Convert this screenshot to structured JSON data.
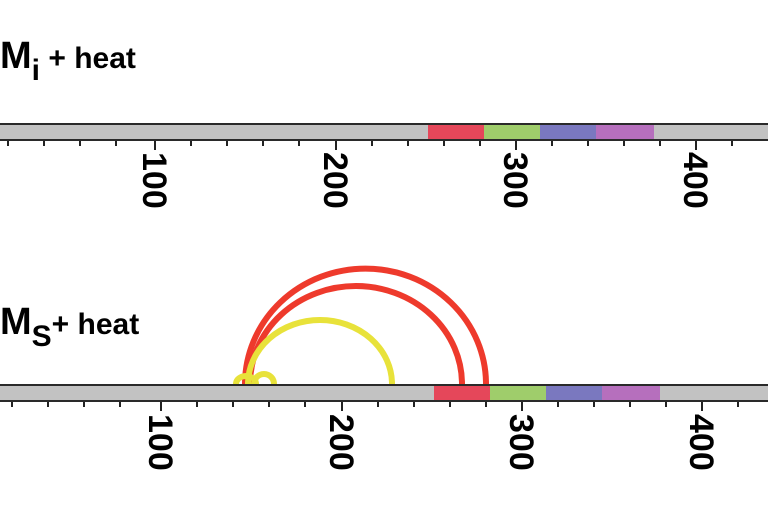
{
  "panels": [
    {
      "id": "mi",
      "title_main": "M",
      "title_sub": "i",
      "title_suffix": " + heat",
      "tick_labels": [
        "100",
        "200",
        "300",
        "400"
      ],
      "domains": [
        {
          "name": "red",
          "color": "#e5475a"
        },
        {
          "name": "green",
          "color": "#9fcd6b"
        },
        {
          "name": "blue",
          "color": "#7a78bf"
        },
        {
          "name": "purple",
          "color": "#b66fbd"
        }
      ],
      "crosslinks": []
    },
    {
      "id": "ms",
      "title_main": "M",
      "title_sub": "S",
      "title_suffix": "+ heat",
      "tick_labels": [
        "100",
        "200",
        "300",
        "400"
      ],
      "domains": [
        {
          "name": "red",
          "color": "#e5475a"
        },
        {
          "name": "green",
          "color": "#9fcd6b"
        },
        {
          "name": "blue",
          "color": "#7a78bf"
        },
        {
          "name": "purple",
          "color": "#b66fbd"
        }
      ],
      "crosslinks": [
        {
          "color": "#ee3a2c"
        },
        {
          "color": "#ee3a2c"
        },
        {
          "color": "#e8e23a"
        },
        {
          "color": "#e8e23a"
        }
      ]
    }
  ],
  "colors": {
    "bar": "#c2c2c2",
    "bar_border": "#2a2a2a"
  }
}
